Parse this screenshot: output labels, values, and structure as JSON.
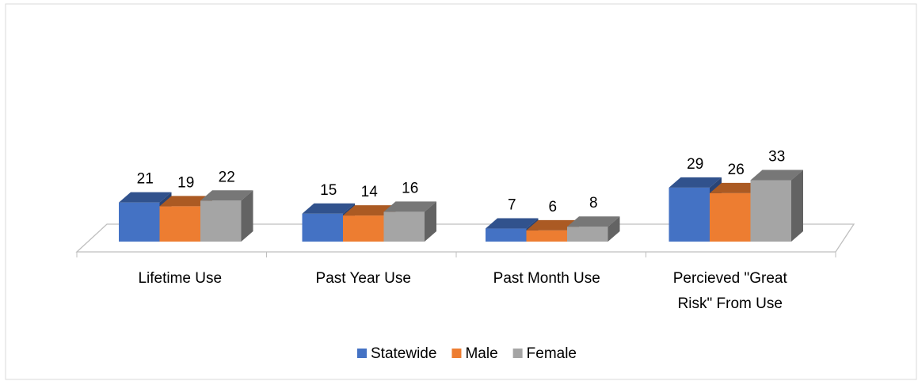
{
  "chart_data": {
    "type": "bar3d",
    "categories": [
      "Lifetime Use",
      "Past Year Use",
      "Past Month Use",
      "Percieved \"Great Risk\" From Use"
    ],
    "series": [
      {
        "name": "Statewide",
        "color": "#4472c4",
        "values": [
          21,
          15,
          7,
          29
        ]
      },
      {
        "name": "Male",
        "color": "#ed7d31",
        "values": [
          19,
          14,
          6,
          26
        ]
      },
      {
        "name": "Female",
        "color": "#a5a5a5",
        "values": [
          22,
          16,
          8,
          33
        ]
      }
    ],
    "legend": "bottom"
  }
}
